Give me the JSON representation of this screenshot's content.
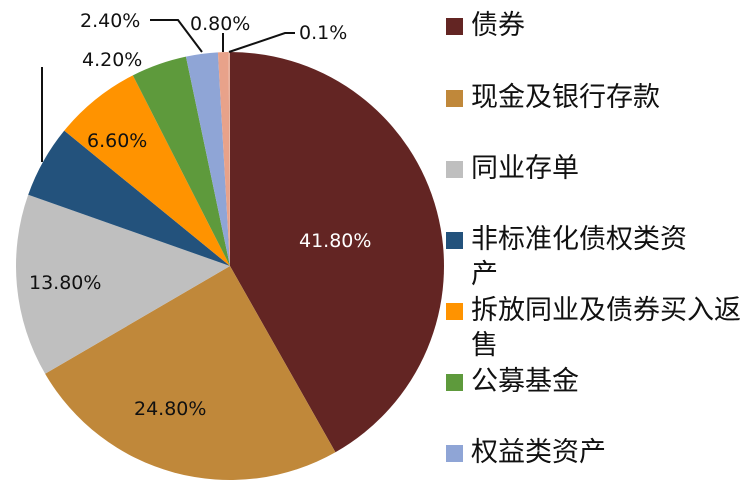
{
  "chart_data": {
    "type": "pie",
    "title": "",
    "start_angle": "12 o'clock, clockwise",
    "slices": [
      {
        "name": "债券",
        "value": 41.8,
        "label": "41.80%",
        "color": "#632523"
      },
      {
        "name": "现金及银行存款",
        "value": 24.8,
        "label": "24.80%",
        "color": "#C0883A"
      },
      {
        "name": "同业存单",
        "value": 13.8,
        "label": "13.80%",
        "color": "#BFBFBF"
      },
      {
        "name": "非标准化债权类资产",
        "value": 5.5,
        "label": "",
        "color": "#23527C"
      },
      {
        "name": "拆放同业及债券买入返售",
        "value": 6.6,
        "label": "6.60%",
        "color": "#FF9300"
      },
      {
        "name": "公募基金",
        "value": 4.2,
        "label": "4.20%",
        "color": "#5E9A3C"
      },
      {
        "name": "权益类资产",
        "value": 2.4,
        "label": "2.40%",
        "color": "#8FA5D6"
      },
      {
        "name": "",
        "value": 0.8,
        "label": "0.80%",
        "color": "#E8A28A"
      },
      {
        "name": "",
        "value": 0.1,
        "label": "0.1%",
        "color": "#E8B4A0"
      }
    ],
    "legend_position": "right"
  },
  "legend": {
    "items": [
      {
        "label": "债券",
        "color": "#632523"
      },
      {
        "label": "现金及银行存款",
        "color": "#C0883A"
      },
      {
        "label": "同业存单",
        "color": "#BFBFBF"
      },
      {
        "label": "非标准化债权类资产",
        "color": "#23527C"
      },
      {
        "label": "拆放同业及债券买入返售",
        "color": "#FF9300"
      },
      {
        "label": "公募基金",
        "color": "#5E9A3C"
      },
      {
        "label": "权益类资产",
        "color": "#8FA5D6"
      }
    ]
  },
  "labels": {
    "bonds": "41.80%",
    "cash": "24.80%",
    "cds": "13.80%",
    "repo": "6.60%",
    "fund": "4.20%",
    "equity": "2.40%",
    "small1": "0.80%",
    "small2": "0.1%"
  }
}
